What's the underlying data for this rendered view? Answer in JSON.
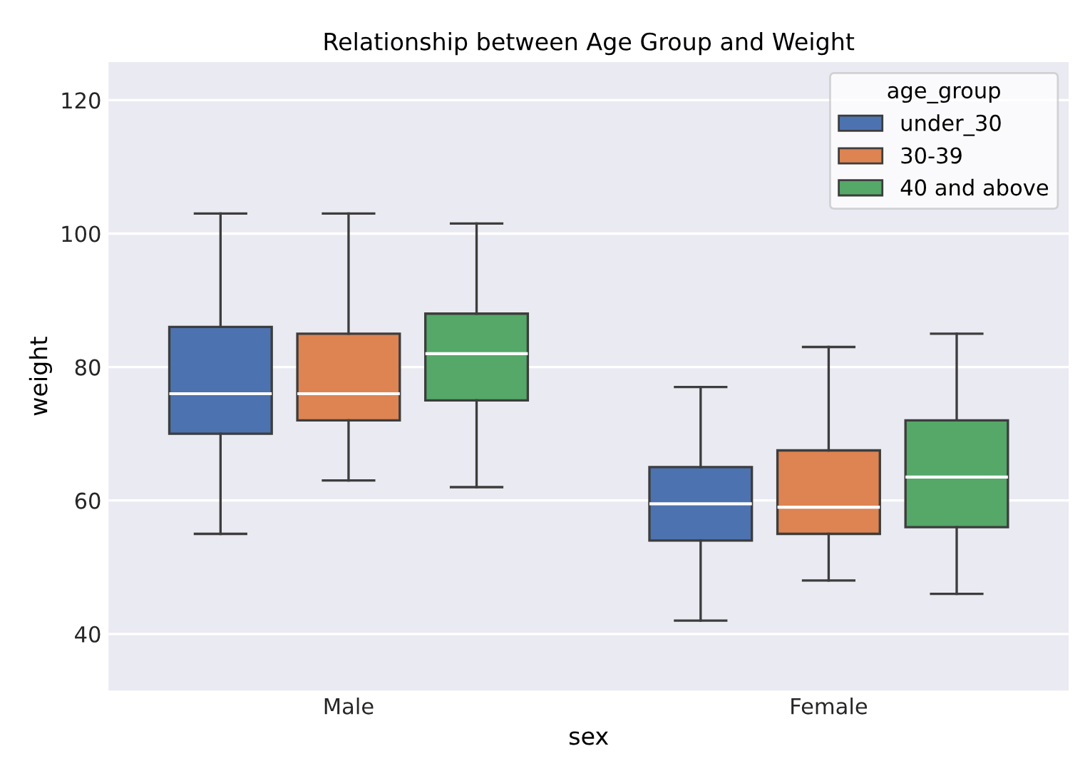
{
  "chart_data": {
    "type": "box",
    "title": "Relationship between Age Group and Weight",
    "xlabel": "sex",
    "ylabel": "weight",
    "legend_title": "age_group",
    "categories": [
      "Male",
      "Female"
    ],
    "series": [
      {
        "name": "under_30",
        "color": "#4c72b0",
        "boxes": [
          {
            "low": 55,
            "q1": 70,
            "median": 76,
            "q3": 86,
            "high": 103
          },
          {
            "low": 42,
            "q1": 54,
            "median": 59.5,
            "q3": 65,
            "high": 77
          }
        ]
      },
      {
        "name": "30-39",
        "color": "#dd8452",
        "boxes": [
          {
            "low": 63,
            "q1": 72,
            "median": 76,
            "q3": 85,
            "high": 103
          },
          {
            "low": 48,
            "q1": 55,
            "median": 59,
            "q3": 67.5,
            "high": 83
          }
        ]
      },
      {
        "name": "40 and above",
        "color": "#55a868",
        "boxes": [
          {
            "low": 62,
            "q1": 75,
            "median": 82,
            "q3": 88,
            "high": 101.5
          },
          {
            "low": 46,
            "q1": 56,
            "median": 63.5,
            "q3": 72,
            "high": 85
          }
        ]
      }
    ],
    "ylim": [
      31.5,
      125.7
    ],
    "yticks": [
      40,
      60,
      80,
      100,
      120
    ],
    "grid": "y",
    "legend": "top right"
  }
}
